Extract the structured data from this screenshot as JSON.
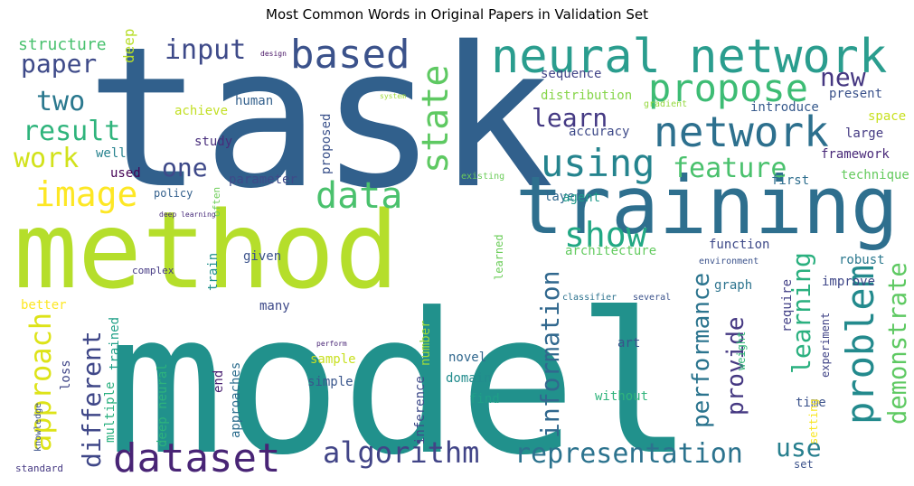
{
  "chart_data": {
    "type": "wordcloud",
    "title": "Most Common Words in Original Papers in Validation Set",
    "words": [
      {
        "text": "task",
        "color": "#31608c"
      },
      {
        "text": "model",
        "color": "#21918c"
      },
      {
        "text": "method",
        "color": "#b5de2b"
      },
      {
        "text": "training",
        "color": "#2e6f8e"
      },
      {
        "text": "neural network",
        "color": "#2a9d8e"
      },
      {
        "text": "network",
        "color": "#2d708e"
      },
      {
        "text": "propose",
        "color": "#3dbc74"
      },
      {
        "text": "based",
        "color": "#3b528b"
      },
      {
        "text": "state",
        "color": "#5ec962"
      },
      {
        "text": "using",
        "color": "#25848e"
      },
      {
        "text": "feature",
        "color": "#4ac16d"
      },
      {
        "text": "data",
        "color": "#4ac16d"
      },
      {
        "text": "image",
        "color": "#fde725"
      },
      {
        "text": "input",
        "color": "#3e4a89"
      },
      {
        "text": "paper",
        "color": "#3e4a89"
      },
      {
        "text": "two",
        "color": "#2a788e"
      },
      {
        "text": "result",
        "color": "#2fb47c"
      },
      {
        "text": "work",
        "color": "#d2e21b"
      },
      {
        "text": "one",
        "color": "#3e4989"
      },
      {
        "text": "show",
        "color": "#22a884"
      },
      {
        "text": "learn",
        "color": "#443983"
      },
      {
        "text": "new",
        "color": "#453781"
      },
      {
        "text": "problem",
        "color": "#238a8d"
      },
      {
        "text": "demonstrate",
        "color": "#5ec962"
      },
      {
        "text": "learning",
        "color": "#2ab07f"
      },
      {
        "text": "performance",
        "color": "#2b748e"
      },
      {
        "text": "provide",
        "color": "#453882"
      },
      {
        "text": "information",
        "color": "#31688e"
      },
      {
        "text": "approach",
        "color": "#dde318"
      },
      {
        "text": "different",
        "color": "#3f4788"
      },
      {
        "text": "dataset",
        "color": "#482475"
      },
      {
        "text": "algorithm",
        "color": "#414487"
      },
      {
        "text": "representation",
        "color": "#2c738e"
      },
      {
        "text": "use",
        "color": "#277f8e"
      },
      {
        "text": "structure",
        "color": "#48c16e"
      },
      {
        "text": "deep",
        "color": "#b8de29"
      },
      {
        "text": "design",
        "color": "#471365"
      },
      {
        "text": "sequence",
        "color": "#414487"
      },
      {
        "text": "distribution",
        "color": "#86d549"
      },
      {
        "text": "present",
        "color": "#3b528b"
      },
      {
        "text": "human",
        "color": "#34618d"
      },
      {
        "text": "system",
        "color": "#9fda3a"
      },
      {
        "text": "gradient",
        "color": "#95d840"
      },
      {
        "text": "achieve",
        "color": "#c2df23"
      },
      {
        "text": "introduce",
        "color": "#375a8c"
      },
      {
        "text": "accuracy",
        "color": "#3e4a89"
      },
      {
        "text": "space",
        "color": "#c8e020"
      },
      {
        "text": "large",
        "color": "#443a83"
      },
      {
        "text": "framework",
        "color": "#482878"
      },
      {
        "text": "study",
        "color": "#472d7b"
      },
      {
        "text": "well",
        "color": "#26828e"
      },
      {
        "text": "proposed",
        "color": "#3b528b"
      },
      {
        "text": "used",
        "color": "#440154"
      },
      {
        "text": "existing",
        "color": "#6ccd5a"
      },
      {
        "text": "first",
        "color": "#2e6e8e"
      },
      {
        "text": "technique",
        "color": "#65cb5e"
      },
      {
        "text": "parameter",
        "color": "#3e4a89"
      },
      {
        "text": "layer",
        "color": "#31688e"
      },
      {
        "text": "policy",
        "color": "#34618d"
      },
      {
        "text": "often",
        "color": "#6ece58"
      },
      {
        "text": "agent",
        "color": "#1f9a8a"
      },
      {
        "text": "deep learning",
        "color": "#472a7a"
      },
      {
        "text": "architecture",
        "color": "#63cb5f"
      },
      {
        "text": "function",
        "color": "#3e4a89"
      },
      {
        "text": "given",
        "color": "#3b528b"
      },
      {
        "text": "learned",
        "color": "#6ccd5a"
      },
      {
        "text": "environment",
        "color": "#3b528b"
      },
      {
        "text": "robust",
        "color": "#2a788e"
      },
      {
        "text": "complex",
        "color": "#443983"
      },
      {
        "text": "train",
        "color": "#21918c"
      },
      {
        "text": "improve",
        "color": "#3f4788"
      },
      {
        "text": "graph",
        "color": "#2c738e"
      },
      {
        "text": "classifier",
        "color": "#2c728e"
      },
      {
        "text": "several",
        "color": "#3b528b"
      },
      {
        "text": "better",
        "color": "#fde725"
      },
      {
        "text": "many",
        "color": "#3e4a89"
      },
      {
        "text": "require",
        "color": "#424086"
      },
      {
        "text": "number",
        "color": "#9fda3a"
      },
      {
        "text": "art",
        "color": "#3b528b"
      },
      {
        "text": "experiment",
        "color": "#414487"
      },
      {
        "text": "weight",
        "color": "#35b779"
      },
      {
        "text": "trained",
        "color": "#1fa088"
      },
      {
        "text": "approaches",
        "color": "#2e6e8e"
      },
      {
        "text": "perform",
        "color": "#482475"
      },
      {
        "text": "sample",
        "color": "#c8e020"
      },
      {
        "text": "simple",
        "color": "#39568c"
      },
      {
        "text": "novel",
        "color": "#31688e"
      },
      {
        "text": "domain",
        "color": "#228c8d"
      },
      {
        "text": "find",
        "color": "#1f9f88"
      },
      {
        "text": "without",
        "color": "#2fb47c"
      },
      {
        "text": "time",
        "color": "#3b528b"
      },
      {
        "text": "setting",
        "color": "#f8e621"
      },
      {
        "text": "set",
        "color": "#3b528b"
      },
      {
        "text": "loss",
        "color": "#404688"
      },
      {
        "text": "multiple",
        "color": "#2ab07f"
      },
      {
        "text": "knowledge",
        "color": "#3b528b"
      },
      {
        "text": "deep neural",
        "color": "#2db27d"
      },
      {
        "text": "end",
        "color": "#481f70"
      },
      {
        "text": "inference",
        "color": "#3e4a89"
      },
      {
        "text": "standard",
        "color": "#453882"
      }
    ]
  }
}
